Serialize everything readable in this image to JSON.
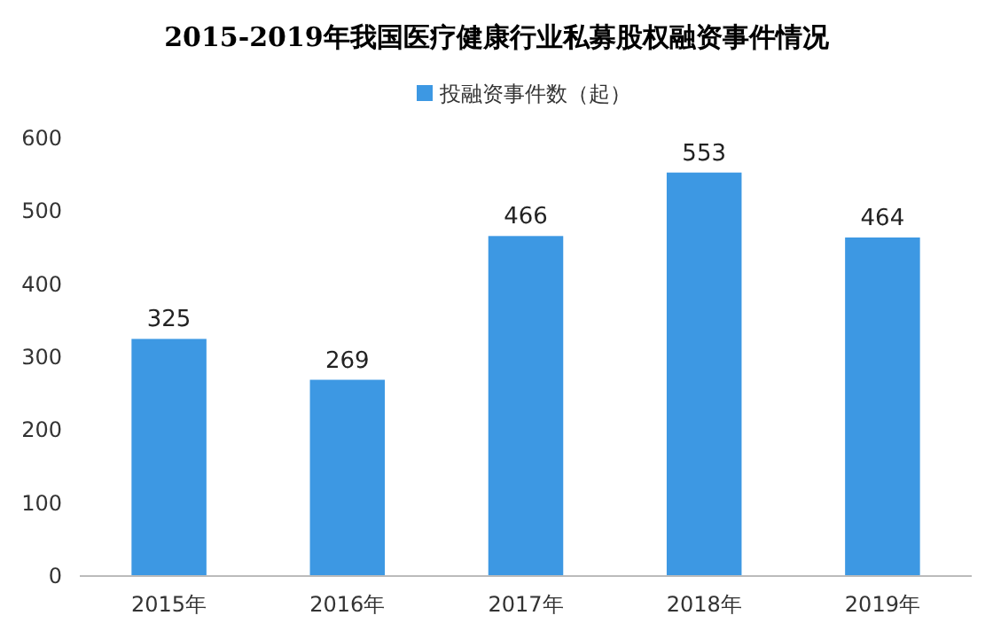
{
  "chart_data": {
    "type": "bar",
    "title": "2015-2019年我国医疗健康行业私募股权融资事件情况",
    "categories": [
      "2015年",
      "2016年",
      "2017年",
      "2018年",
      "2019年"
    ],
    "series": [
      {
        "name": "投融资事件数（起）",
        "color": "#3d98e3",
        "values": [
          325,
          269,
          466,
          553,
          464
        ]
      }
    ],
    "ylim": [
      0,
      600
    ],
    "yticks": [
      0,
      100,
      200,
      300,
      400,
      500,
      600
    ],
    "data_labels": true,
    "legend": "top",
    "grid": false
  }
}
